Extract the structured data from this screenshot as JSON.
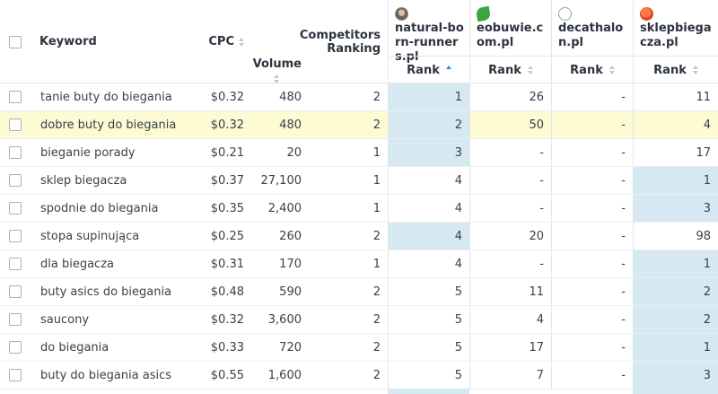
{
  "header": {
    "keyword": "Keyword",
    "cpc": "CPC",
    "volume": "Volume",
    "competitors_ranking": "Competitors Ranking",
    "domains": [
      {
        "name": "natural-born-runners.pl",
        "favicon": "runner-avatar-icon",
        "rank_label": "Rank",
        "sort": "asc"
      },
      {
        "name": "eobuwie.com.pl",
        "favicon": "green-leaf-icon",
        "rank_label": "Rank",
        "sort": "none"
      },
      {
        "name": "decathalon.pl",
        "favicon": "blank-circle-icon",
        "rank_label": "Rank",
        "sort": "none"
      },
      {
        "name": "sklepbiegacza.pl",
        "favicon": "orange-dot-icon",
        "rank_label": "Rank",
        "sort": "none"
      }
    ]
  },
  "colors": {
    "highlight_row": "#fdfbd4",
    "best_rank_cell": "#d6e9f2",
    "sort_active": "#2e8ad8"
  },
  "rows": [
    {
      "keyword": "tanie buty do biegania",
      "cpc": "$0.32",
      "volume": "480",
      "competitors": "2",
      "ranks": [
        "1",
        "26",
        "-",
        "11"
      ],
      "best": [
        true,
        false,
        false,
        false
      ],
      "highlight": false
    },
    {
      "keyword": "dobre buty do biegania",
      "cpc": "$0.32",
      "volume": "480",
      "competitors": "2",
      "ranks": [
        "2",
        "50",
        "-",
        "4"
      ],
      "best": [
        true,
        false,
        false,
        false
      ],
      "highlight": true
    },
    {
      "keyword": "bieganie porady",
      "cpc": "$0.21",
      "volume": "20",
      "competitors": "1",
      "ranks": [
        "3",
        "-",
        "-",
        "17"
      ],
      "best": [
        true,
        false,
        false,
        false
      ],
      "highlight": false
    },
    {
      "keyword": "sklep biegacza",
      "cpc": "$0.37",
      "volume": "27,100",
      "competitors": "1",
      "ranks": [
        "4",
        "-",
        "-",
        "1"
      ],
      "best": [
        false,
        false,
        false,
        true
      ],
      "highlight": false
    },
    {
      "keyword": "spodnie do biegania",
      "cpc": "$0.35",
      "volume": "2,400",
      "competitors": "1",
      "ranks": [
        "4",
        "-",
        "-",
        "3"
      ],
      "best": [
        false,
        false,
        false,
        true
      ],
      "highlight": false
    },
    {
      "keyword": "stopa supinująca",
      "cpc": "$0.25",
      "volume": "260",
      "competitors": "2",
      "ranks": [
        "4",
        "20",
        "-",
        "98"
      ],
      "best": [
        true,
        false,
        false,
        false
      ],
      "highlight": false
    },
    {
      "keyword": "dla biegacza",
      "cpc": "$0.31",
      "volume": "170",
      "competitors": "1",
      "ranks": [
        "4",
        "-",
        "-",
        "1"
      ],
      "best": [
        false,
        false,
        false,
        true
      ],
      "highlight": false
    },
    {
      "keyword": "buty asics do biegania",
      "cpc": "$0.48",
      "volume": "590",
      "competitors": "2",
      "ranks": [
        "5",
        "11",
        "-",
        "2"
      ],
      "best": [
        false,
        false,
        false,
        true
      ],
      "highlight": false
    },
    {
      "keyword": "saucony",
      "cpc": "$0.32",
      "volume": "3,600",
      "competitors": "2",
      "ranks": [
        "5",
        "4",
        "-",
        "2"
      ],
      "best": [
        false,
        false,
        false,
        true
      ],
      "highlight": false
    },
    {
      "keyword": "do biegania",
      "cpc": "$0.33",
      "volume": "720",
      "competitors": "2",
      "ranks": [
        "5",
        "17",
        "-",
        "1"
      ],
      "best": [
        false,
        false,
        false,
        true
      ],
      "highlight": false
    },
    {
      "keyword": "buty do biegania asics",
      "cpc": "$0.55",
      "volume": "1,600",
      "competitors": "2",
      "ranks": [
        "5",
        "7",
        "-",
        "3"
      ],
      "best": [
        false,
        false,
        false,
        true
      ],
      "highlight": false
    }
  ]
}
